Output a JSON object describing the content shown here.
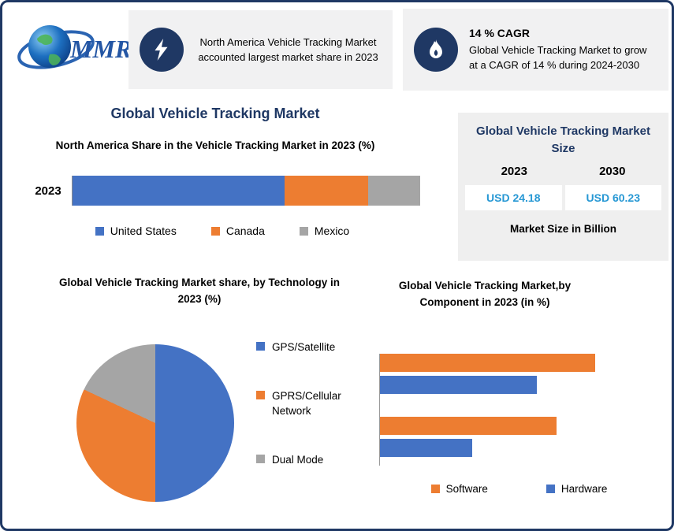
{
  "logo": {
    "text": "MMR"
  },
  "callouts": [
    {
      "icon": "lightning-icon",
      "text": "North America Vehicle Tracking Market accounted largest market share in 2023"
    },
    {
      "icon": "flame-icon",
      "title": "14 % CAGR",
      "text": "Global Vehicle Tracking Market to grow at a CAGR of 14 % during 2024-2030"
    }
  ],
  "main_title": "Global Vehicle Tracking Market",
  "market_size_panel": {
    "title": "Global Vehicle Tracking Market Size",
    "years": [
      "2023",
      "2030"
    ],
    "values": [
      "USD 24.18",
      "USD 60.23"
    ],
    "footnote": "Market Size in Billion"
  },
  "colors": {
    "navy": "#1f3864",
    "usd_value_blue": "#2798d4",
    "panel_bg": "#efefef",
    "callout_bg": "#f1f1f2"
  },
  "chart_data": [
    {
      "type": "bar",
      "subtype": "stacked-horizontal",
      "title": "North America Share in the Vehicle Tracking Market in 2023 (%)",
      "categories": [
        "2023"
      ],
      "series": [
        {
          "name": "United States",
          "color": "#4472c4",
          "values": [
            61
          ]
        },
        {
          "name": "Canada",
          "color": "#ed7d31",
          "values": [
            24
          ]
        },
        {
          "name": "Mexico",
          "color": "#a5a5a5",
          "values": [
            15
          ]
        }
      ],
      "xlim": [
        0,
        100
      ],
      "legend_position": "bottom"
    },
    {
      "type": "pie",
      "title": "Global Vehicle Tracking Market share, by Technology in 2023  (%)",
      "labels": [
        "GPS/Satellite",
        "GPRS/Cellular Network",
        "Dual Mode"
      ],
      "values": [
        50,
        32,
        18
      ],
      "colors": [
        "#4472c4",
        "#ed7d31",
        "#a5a5a5"
      ],
      "legend_position": "right"
    },
    {
      "type": "bar",
      "subtype": "grouped-horizontal",
      "title": "Global Vehicle Tracking Market,by Component in 2023 (in %)",
      "series": [
        {
          "name": "Software",
          "color": "#ed7d31"
        },
        {
          "name": "Hardware",
          "color": "#4472c4"
        }
      ],
      "groups": [
        {
          "software": 77,
          "hardware": 56
        },
        {
          "software": 63,
          "hardware": 33
        }
      ],
      "xlim": [
        0,
        100
      ],
      "legend_position": "bottom"
    }
  ]
}
